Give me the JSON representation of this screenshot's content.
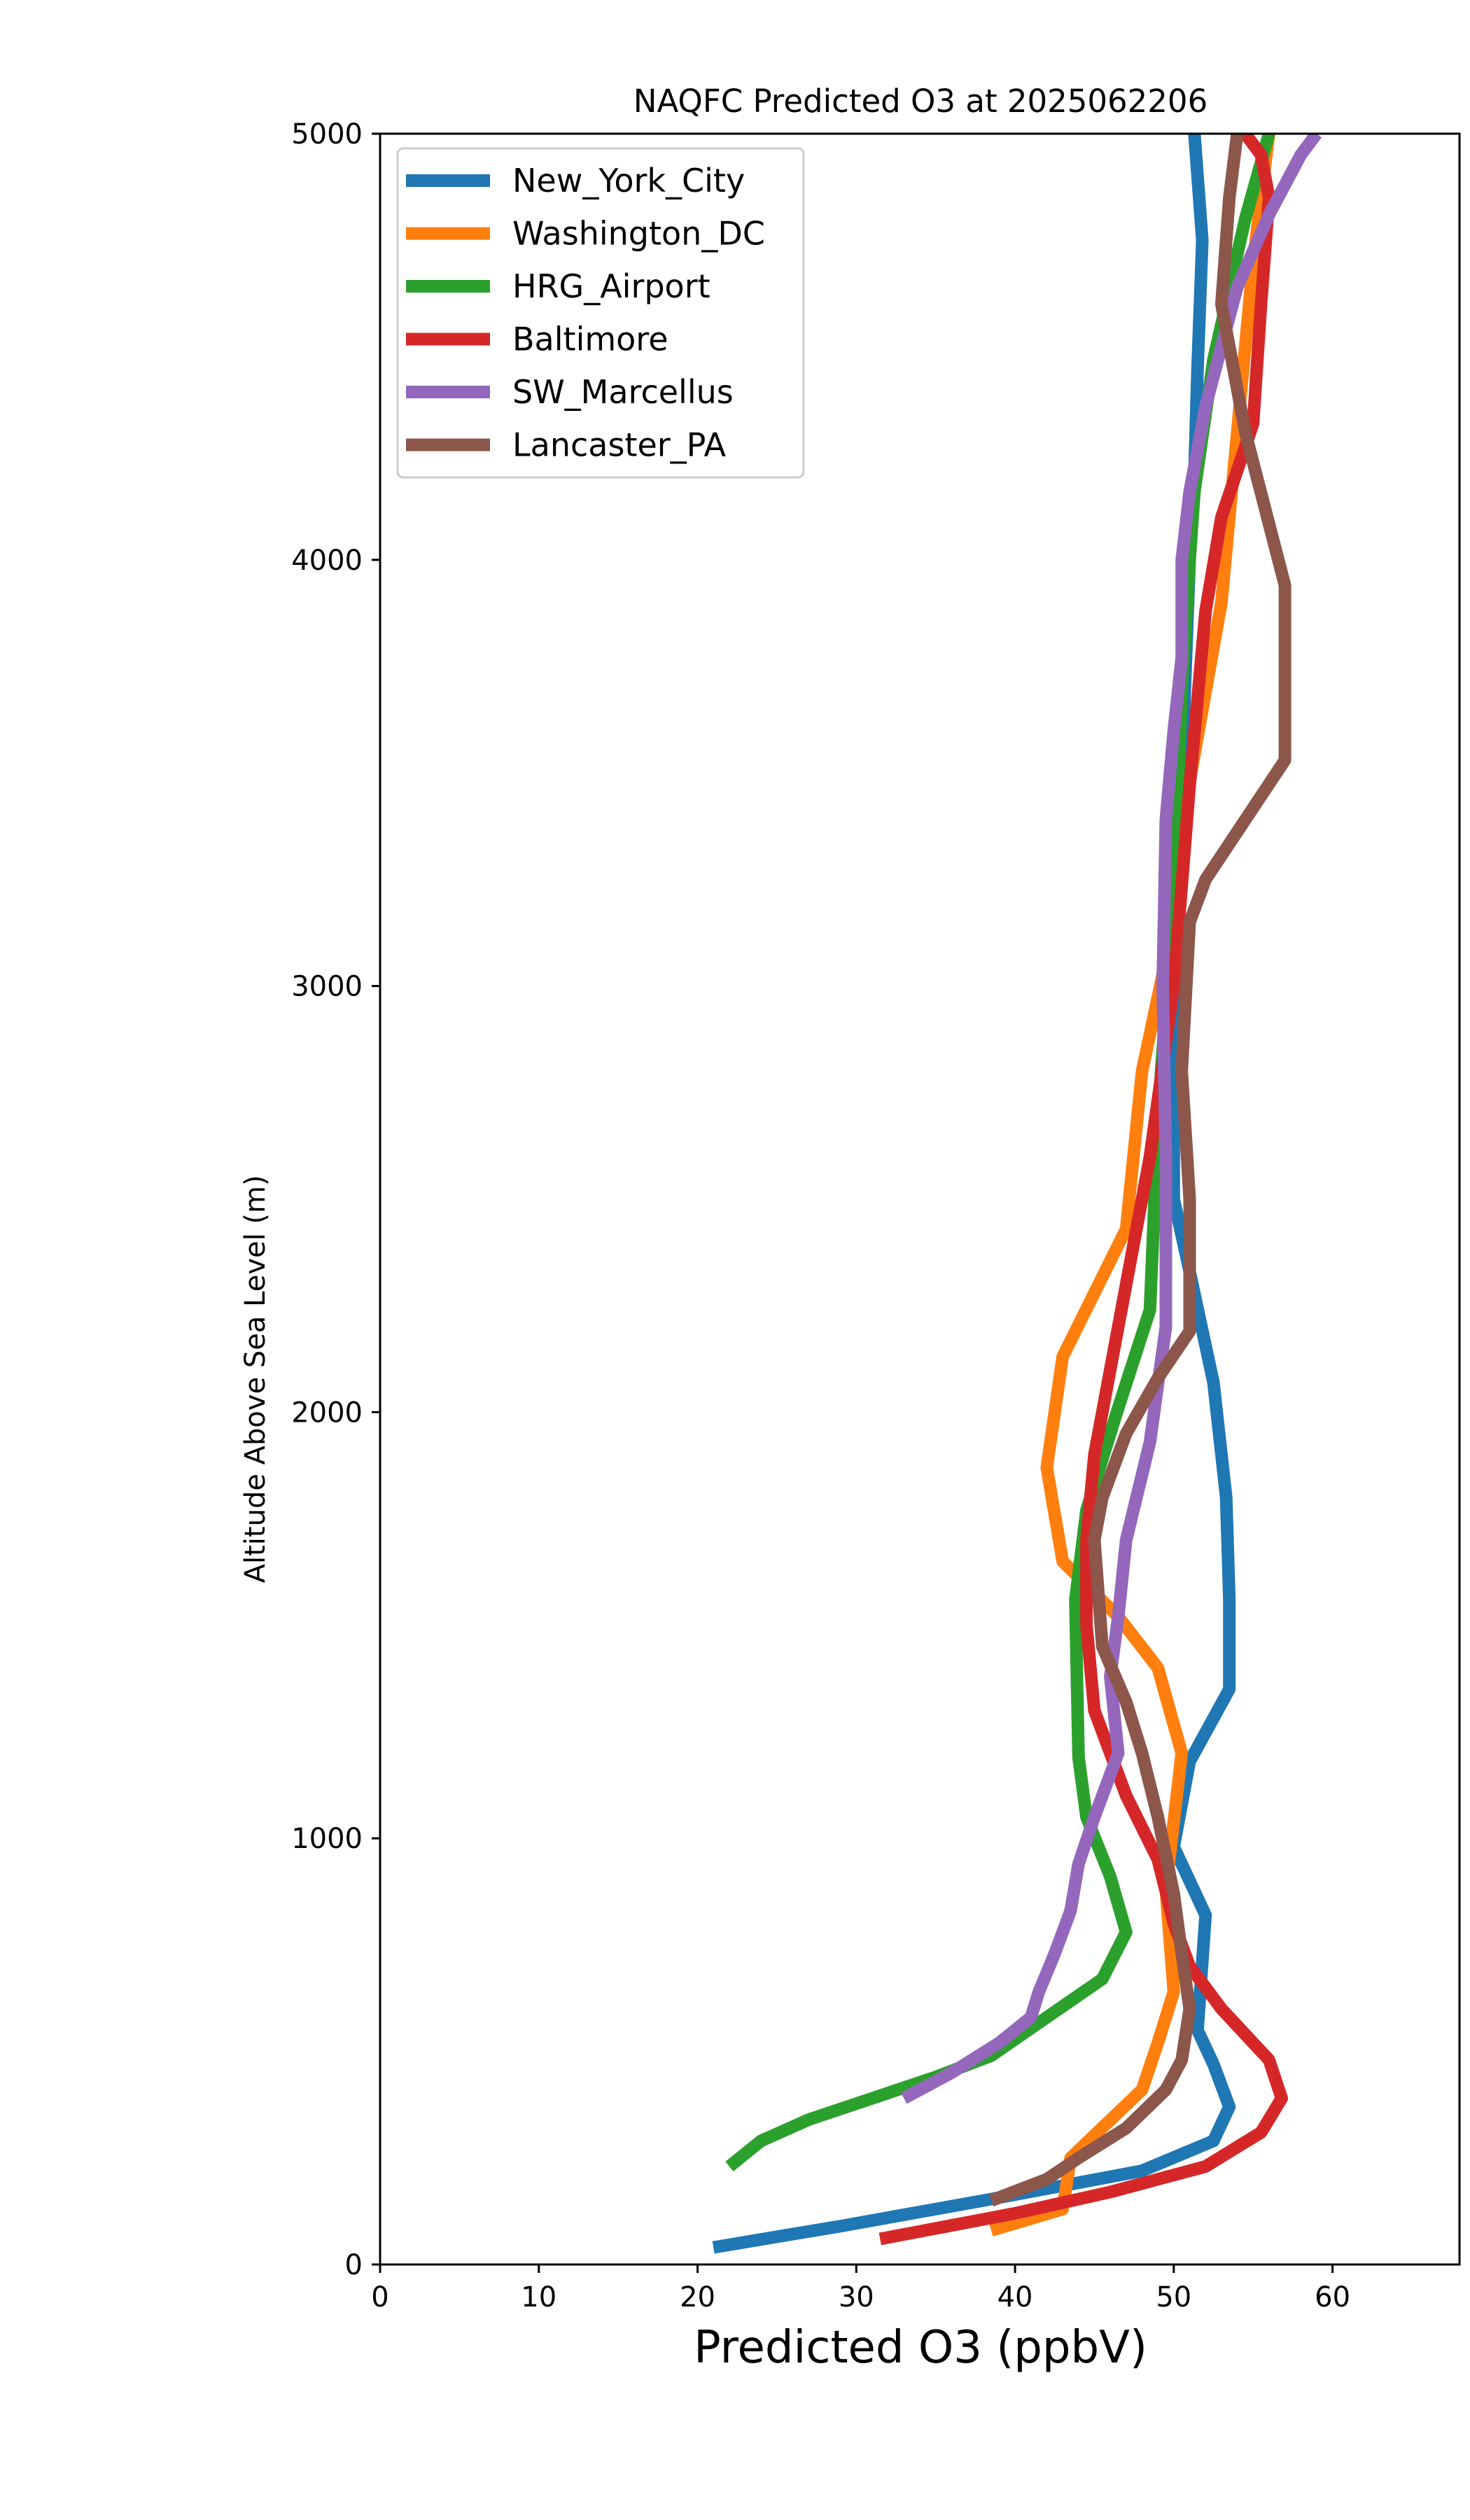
{
  "chart_data": {
    "type": "line",
    "title": "NAQFC Predicted O3 at 2025062206",
    "xlabel": "Predicted O3 (ppbV)",
    "ylabel": "Altitude Above Sea Level (m)",
    "xlim": [
      0,
      68
    ],
    "ylim": [
      0,
      5000
    ],
    "xticks": [
      0,
      10,
      20,
      30,
      40,
      50,
      60
    ],
    "yticks": [
      0,
      1000,
      2000,
      3000,
      4000,
      5000
    ],
    "grid": false,
    "legend_position": "upper left",
    "series": [
      {
        "name": "New_York_City",
        "color": "#1f77b4",
        "x": [
          21,
          29,
          38,
          48,
          52.5,
          53.5,
          52.5,
          51.5,
          52,
          50,
          51,
          53.5,
          53.5,
          53.3,
          52.5,
          51,
          50,
          50,
          50.5,
          51,
          51.3,
          51.5,
          51.8,
          51.5,
          51.3
        ],
        "y": [
          40,
          90,
          150,
          220,
          290,
          370,
          470,
          550,
          820,
          980,
          1180,
          1350,
          1560,
          1800,
          2070,
          2330,
          2500,
          3000,
          3500,
          4000,
          4200,
          4450,
          4750,
          4900,
          5000
        ]
      },
      {
        "name": "Washington_DC",
        "color": "#ff7f0e",
        "x": [
          38.5,
          43,
          43.5,
          48,
          49,
          50,
          49.5,
          50.5,
          49,
          46.5,
          43,
          42,
          43,
          47,
          48,
          50,
          51,
          53,
          54,
          55,
          56
        ],
        "y": [
          80,
          130,
          250,
          410,
          520,
          640,
          880,
          1200,
          1400,
          1520,
          1650,
          1870,
          2130,
          2430,
          2800,
          3150,
          3480,
          3900,
          4300,
          4700,
          5000
        ]
      },
      {
        "name": "HRG_Airport",
        "color": "#2ca02c",
        "x": [
          22,
          24,
          27,
          31,
          35,
          38.5,
          42,
          45.5,
          47,
          46,
          44.5,
          44,
          43.8,
          44.5,
          46.5,
          48.5,
          48.8,
          49.2,
          49.8,
          50.2,
          50.5,
          51,
          51.3,
          52.5,
          54.5,
          56
        ],
        "y": [
          230,
          290,
          340,
          390,
          440,
          490,
          580,
          670,
          780,
          910,
          1050,
          1190,
          1560,
          1770,
          2010,
          2240,
          2510,
          2800,
          3100,
          3400,
          3700,
          4000,
          4160,
          4470,
          4800,
          5000
        ]
      },
      {
        "name": "Baltimore",
        "color": "#d62728",
        "x": [
          31.5,
          40,
          46,
          52,
          55.5,
          56.8,
          56,
          55,
          53,
          51,
          50,
          49,
          47,
          45,
          44.5,
          44.5,
          45,
          46,
          47,
          48.5,
          50,
          51,
          52,
          53,
          55,
          55.5,
          56,
          55.5,
          54.5
        ],
        "y": [
          60,
          120,
          170,
          230,
          310,
          390,
          480,
          520,
          600,
          700,
          800,
          950,
          1100,
          1300,
          1500,
          1700,
          1900,
          2100,
          2300,
          2600,
          3000,
          3470,
          3880,
          4100,
          4320,
          4600,
          4850,
          4950,
          5000
        ]
      },
      {
        "name": "SW_Marcellus",
        "color": "#9467bd",
        "x": [
          33,
          36,
          39,
          41,
          41.5,
          42.5,
          43.5,
          44,
          45,
          46,
          46.5,
          46,
          46.5,
          47,
          48.5,
          49.5,
          49.5,
          49.3,
          49.5,
          50,
          50.5,
          50.5,
          51,
          52,
          54,
          56,
          58,
          59
        ],
        "y": [
          390,
          450,
          520,
          580,
          640,
          730,
          830,
          940,
          1050,
          1150,
          1200,
          1380,
          1520,
          1700,
          1930,
          2200,
          2600,
          3000,
          3390,
          3600,
          3770,
          4000,
          4160,
          4360,
          4640,
          4810,
          4950,
          5000
        ]
      },
      {
        "name": "Lancaster_PA",
        "color": "#8c564b",
        "x": [
          38.5,
          42,
          44,
          47,
          49.5,
          50.5,
          51,
          50.5,
          50,
          49,
          48,
          47,
          45.5,
          45,
          45.5,
          47,
          49,
          51,
          51,
          50.5,
          51,
          52,
          57,
          57,
          54.5,
          53,
          53.5,
          54
        ],
        "y": [
          150,
          200,
          250,
          320,
          410,
          480,
          600,
          730,
          870,
          1050,
          1200,
          1320,
          1450,
          1700,
          1800,
          1950,
          2080,
          2190,
          2500,
          2800,
          3150,
          3250,
          3530,
          3940,
          4300,
          4600,
          4850,
          5000
        ]
      }
    ]
  }
}
